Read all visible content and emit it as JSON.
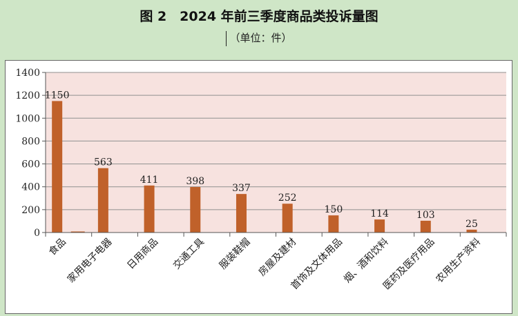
{
  "header": {
    "title": "图 2　2024 年前三季度商品类投诉量图",
    "subtitle": "（单位：件）"
  },
  "colors": {
    "background": "#cfe6c7",
    "plot_area": "#f7e2df",
    "bar": "#c0612a",
    "gridline": "#8f8f8f"
  },
  "chart_data": {
    "type": "bar",
    "title": "图 2　2024 年前三季度商品类投诉量图",
    "subtitle": "（单位：件）",
    "categories": [
      "食品",
      "家用电子电器",
      "日用商品",
      "交通工具",
      "服装鞋帽",
      "房屋及建材",
      "首饰及文体用品",
      "烟、酒和饮料",
      "医药及医疗用品",
      "农用生产资料"
    ],
    "values": [
      1150,
      563,
      411,
      398,
      337,
      252,
      150,
      114,
      103,
      25
    ],
    "data_labels": [
      "1150",
      "563",
      "411",
      "398",
      "337",
      "252",
      "150",
      "114",
      "103",
      "25"
    ],
    "ylim": [
      0,
      1400
    ],
    "yticks": [
      0,
      200,
      400,
      600,
      800,
      1000,
      1200,
      1400
    ],
    "grid": true,
    "legend": "none"
  }
}
